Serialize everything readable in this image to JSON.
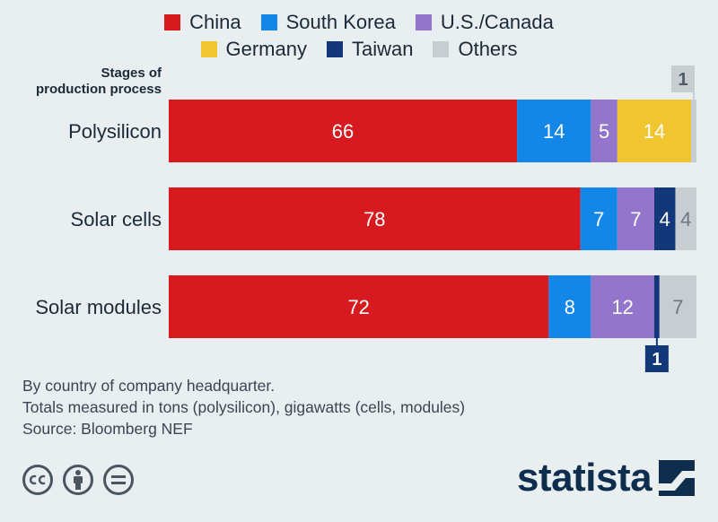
{
  "chart_data": {
    "type": "bar",
    "orientation": "horizontal",
    "stacked": true,
    "category_header": [
      "Stages of",
      "production process"
    ],
    "categories": [
      "Polysilicon",
      "Solar cells",
      "Solar modules"
    ],
    "xlim": [
      0,
      100
    ],
    "grid": false,
    "legend_position": "top",
    "series": [
      {
        "name": "China",
        "color": "#d71920",
        "values": [
          66,
          78,
          72
        ]
      },
      {
        "name": "South Korea",
        "color": "#1287e8",
        "values": [
          14,
          7,
          8
        ]
      },
      {
        "name": "U.S./Canada",
        "color": "#9475cc",
        "values": [
          5,
          7,
          12
        ]
      },
      {
        "name": "Germany",
        "color": "#f0c530",
        "values": [
          14,
          0,
          0
        ]
      },
      {
        "name": "Taiwan",
        "color": "#12387a",
        "values": [
          0,
          4,
          1
        ]
      },
      {
        "name": "Others",
        "color": "#c8cdd1",
        "values": [
          1,
          4,
          7
        ]
      }
    ]
  },
  "notes": [
    "By country of company headquarter.",
    "Totals measured in tons (polysilicon), gigawatts (cells, modules)",
    "Source: Bloomberg NEF"
  ],
  "brand": {
    "name": "statista"
  },
  "license_icons": [
    "cc-icon",
    "person-icon",
    "equals-icon"
  ]
}
